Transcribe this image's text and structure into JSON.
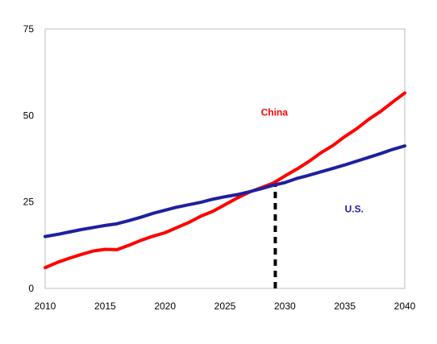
{
  "chart_data": {
    "type": "line",
    "title": "",
    "xlabel": "",
    "ylabel": "",
    "xlim": [
      2010,
      2040
    ],
    "ylim": [
      0,
      75
    ],
    "x_ticks": [
      2010,
      2015,
      2020,
      2025,
      2030,
      2035,
      2040
    ],
    "x_tick_labels": [
      "2010",
      "2015",
      "2020",
      "2025",
      "2030",
      "2035",
      "2040"
    ],
    "y_ticks": [
      0,
      25,
      50,
      75
    ],
    "y_tick_labels": [
      "0",
      "25",
      "50",
      "75"
    ],
    "grid": false,
    "legend": "none",
    "series": [
      {
        "name": "China",
        "color": "#ff0000",
        "label_position": {
          "x": 2028,
          "y": 50
        },
        "x": [
          2010,
          2011,
          2012,
          2013,
          2014,
          2015,
          2016,
          2017,
          2018,
          2019,
          2020,
          2021,
          2022,
          2023,
          2024,
          2025,
          2026,
          2027,
          2028,
          2029,
          2030,
          2031,
          2032,
          2033,
          2034,
          2035,
          2036,
          2037,
          2038,
          2039,
          2040
        ],
        "values": [
          6,
          7.5,
          8.7,
          9.8,
          10.8,
          11.3,
          11.2,
          12.5,
          13.9,
          15.1,
          16.1,
          17.6,
          19.1,
          20.9,
          22.3,
          24.2,
          26.1,
          27.8,
          29.1,
          30.4,
          32.5,
          34.5,
          36.7,
          39.2,
          41.3,
          43.9,
          46.2,
          48.9,
          51.2,
          53.9,
          56.5
        ]
      },
      {
        "name": "U.S.",
        "color": "#1f1fa0",
        "label_position": {
          "x": 2035,
          "y": 22
        },
        "x": [
          2010,
          2011,
          2012,
          2013,
          2014,
          2015,
          2016,
          2017,
          2018,
          2019,
          2020,
          2021,
          2022,
          2023,
          2024,
          2025,
          2026,
          2027,
          2028,
          2029,
          2030,
          2031,
          2032,
          2033,
          2034,
          2035,
          2036,
          2037,
          2038,
          2039,
          2040
        ],
        "values": [
          15,
          15.6,
          16.3,
          17,
          17.6,
          18.2,
          18.7,
          19.6,
          20.6,
          21.7,
          22.6,
          23.5,
          24.2,
          24.9,
          25.8,
          26.5,
          27.1,
          27.9,
          28.8,
          29.8,
          30.6,
          31.8,
          32.7,
          33.7,
          34.7,
          35.7,
          36.8,
          37.9,
          39,
          40.2,
          41.2
        ]
      }
    ],
    "annotations": [
      {
        "type": "vertical-dashed-line",
        "x": 2029.2,
        "y_from": 0,
        "y_to": 30,
        "color": "#000000"
      }
    ]
  }
}
